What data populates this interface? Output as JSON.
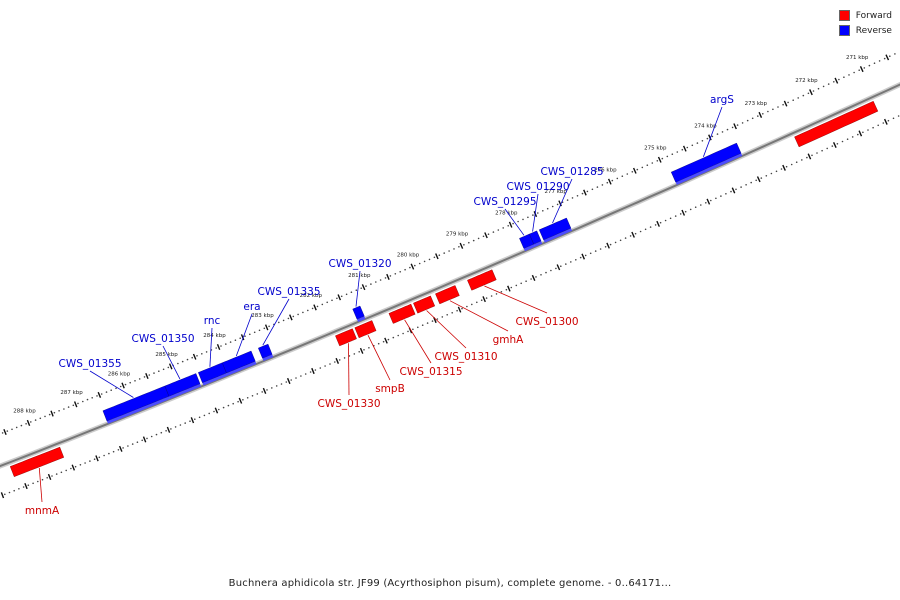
{
  "legend": {
    "forward_label": "Forward",
    "reverse_label": "Reverse",
    "forward_color": "#ff0000",
    "reverse_color": "#0000ff"
  },
  "caption": "Buchnera aphidicola str. JF99 (Acyrthosiphon pisum), complete genome. - 0..64171...",
  "track_colors": {
    "axis": "#888888",
    "forward": "#ff0000",
    "forward_label": "#cc0000",
    "reverse": "#0000ff",
    "reverse_label": "#0000cc"
  },
  "kbp_ticks": [
    "271 kbp",
    "272 kbp",
    "273 kbp",
    "274 kbp",
    "275 kbp",
    "276 kbp",
    "277 kbp",
    "278 kbp",
    "279 kbp",
    "280 kbp",
    "281 kbp",
    "282 kbp",
    "283 kbp",
    "284 kbp",
    "285 kbp",
    "286 kbp",
    "287 kbp",
    "288 kbp"
  ],
  "genes": [
    {
      "label": "argS",
      "strand": "reverse",
      "start_kbp": 273.6,
      "end_kbp": 274.9
    },
    {
      "label": "CWS_01285",
      "strand": "reverse",
      "start_kbp": 277.0,
      "end_kbp": 277.55
    },
    {
      "label": "CWS_01290",
      "strand": "reverse",
      "start_kbp": 277.6,
      "end_kbp": 277.75
    },
    {
      "label": "CWS_01295",
      "strand": "reverse",
      "start_kbp": 277.75,
      "end_kbp": 277.95
    },
    {
      "label": "CWS_01320",
      "strand": "reverse",
      "start_kbp": 281.2,
      "end_kbp": 281.35
    },
    {
      "label": "CWS_01335",
      "strand": "reverse",
      "start_kbp": 283.1,
      "end_kbp": 283.3
    },
    {
      "label": "era",
      "strand": "reverse",
      "start_kbp": 283.45,
      "end_kbp": 284.05
    },
    {
      "label": "rnc",
      "strand": "reverse",
      "start_kbp": 284.05,
      "end_kbp": 284.55
    },
    {
      "label": "CWS_01350",
      "strand": "reverse",
      "start_kbp": 284.6,
      "end_kbp": 285.25
    },
    {
      "label": "CWS_01355",
      "strand": "reverse",
      "start_kbp": 285.25,
      "end_kbp": 286.55
    },
    {
      "label": "CWS_01300",
      "strand": "forward",
      "start_kbp": 278.65,
      "end_kbp": 279.15
    },
    {
      "label": "gmhA",
      "strand": "forward",
      "start_kbp": 279.4,
      "end_kbp": 279.8
    },
    {
      "label": "CWS_01310",
      "strand": "forward",
      "start_kbp": 279.9,
      "end_kbp": 280.25
    },
    {
      "label": "CWS_01315",
      "strand": "forward",
      "start_kbp": 280.3,
      "end_kbp": 280.75
    },
    {
      "label": "smpB",
      "strand": "forward",
      "start_kbp": 281.1,
      "end_kbp": 281.45
    },
    {
      "label": "CWS_01330",
      "strand": "forward",
      "start_kbp": 281.5,
      "end_kbp": 281.85
    },
    {
      "label": "mnmA",
      "strand": "forward",
      "start_kbp": 287.6,
      "end_kbp": 288.65
    },
    {
      "label": "",
      "strand": "forward",
      "start_kbp": 271.05,
      "end_kbp": 272.6
    }
  ]
}
